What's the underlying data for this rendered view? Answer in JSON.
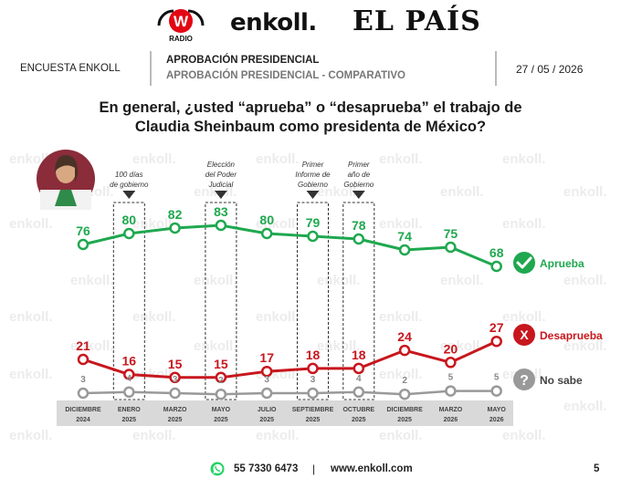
{
  "header": {
    "logos": [
      "W RADIO",
      "enkoll.",
      "EL PAÍS"
    ],
    "logo_w_letter": "W",
    "logo_w_sub": "RADIO",
    "logo_enkoll": "enkoll.",
    "logo_pais": "EL PAÍS",
    "survey_label": "ENCUESTA ENKOLL",
    "title": "APROBACIÓN PRESIDENCIAL",
    "subtitle": "APROBACIÓN PRESIDENCIAL - COMPARATIVO",
    "date": "27 / 05 / 2026"
  },
  "question_line1": "En general, ¿usted “aprueba” o “desaprueba” el trabajo de",
  "question_line2": "Claudia Sheinbaum como presidenta de México?",
  "watermark_text": "enkoll.",
  "colors": {
    "aprueba": "#1fa84f",
    "desaprueba": "#c8161d",
    "no_sabe": "#999999",
    "axis_band": "#d9d9d9"
  },
  "chart_data": {
    "type": "line",
    "categories": [
      [
        "DICIEMBRE",
        "2024"
      ],
      [
        "ENERO",
        "2025"
      ],
      [
        "MARZO",
        "2025"
      ],
      [
        "MAYO",
        "2025"
      ],
      [
        "JULIO",
        "2025"
      ],
      [
        "SEPTIEMBRE",
        "2025"
      ],
      [
        "OCTUBRE",
        "2025"
      ],
      [
        "DICIEMBRE",
        "2025"
      ],
      [
        "MARZO",
        "2026"
      ],
      [
        "MAYO",
        "2026"
      ]
    ],
    "series": [
      {
        "name": "Aprueba",
        "values": [
          76,
          80,
          82,
          83,
          80,
          79,
          78,
          74,
          75,
          68
        ],
        "color": "#1fa84f",
        "icon": "check-icon"
      },
      {
        "name": "Desaprueba",
        "values": [
          21,
          16,
          15,
          15,
          17,
          18,
          18,
          24,
          20,
          27
        ],
        "color": "#c8161d",
        "icon": "x-icon"
      },
      {
        "name": "No sabe",
        "values": [
          3,
          4,
          3,
          2,
          3,
          3,
          4,
          2,
          5,
          5
        ],
        "color": "#999999",
        "icon": "question-icon"
      }
    ],
    "annotations": [
      {
        "index": 1,
        "lines": [
          "100 días",
          "de gobierno"
        ]
      },
      {
        "index": 3,
        "lines": [
          "Elección",
          "del Poder",
          "Judicial"
        ]
      },
      {
        "index": 5,
        "lines": [
          "Primer",
          "Informe de",
          "Gobierno"
        ]
      },
      {
        "index": 6,
        "lines": [
          "Primer",
          "año de",
          "Gobierno"
        ]
      }
    ],
    "legend_position": "right"
  },
  "footer": {
    "phone": "55 7330 6473",
    "separator": "|",
    "website": "www.enkoll.com",
    "page": "5",
    "icon": "whatsapp-icon"
  }
}
